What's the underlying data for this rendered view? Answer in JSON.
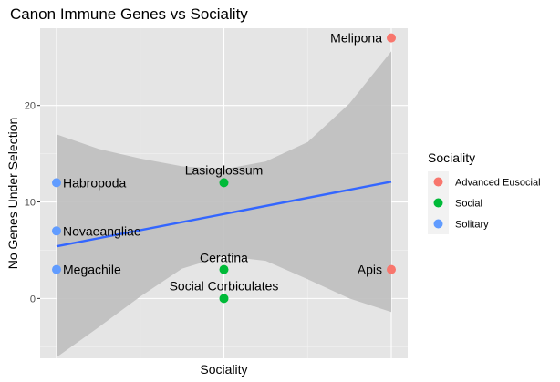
{
  "chart_data": {
    "type": "scatter",
    "title": "Canon Immune Genes vs Sociality",
    "xlabel": "Sociality",
    "ylabel": "No Genes Under Selection",
    "x_categories": [
      "Solitary",
      "Social",
      "Advanced Eusocial"
    ],
    "ylim": [
      -6.2,
      28
    ],
    "yticks": [
      0,
      10,
      20
    ],
    "grid": true,
    "legend": {
      "title": "Sociality",
      "placement": "right",
      "entries": [
        {
          "name": "Advanced Eusocial",
          "color": "#F8766D"
        },
        {
          "name": "Social",
          "color": "#00BA38"
        },
        {
          "name": "Solitary",
          "color": "#619CFF"
        }
      ]
    },
    "points": [
      {
        "label": "Melipona",
        "group": "Advanced Eusocial",
        "x": "Advanced Eusocial",
        "y": 27
      },
      {
        "label": "Apis",
        "group": "Advanced Eusocial",
        "x": "Advanced Eusocial",
        "y": 3
      },
      {
        "label": "Lasioglossum",
        "group": "Social",
        "x": "Social",
        "y": 12
      },
      {
        "label": "Ceratina",
        "group": "Social",
        "x": "Social",
        "y": 3
      },
      {
        "label": "Social Corbiculates",
        "group": "Social",
        "x": "Social",
        "y": 0
      },
      {
        "label": "Habropoda",
        "group": "Solitary",
        "x": "Solitary",
        "y": 12
      },
      {
        "label": "Novaeangliae",
        "group": "Solitary",
        "x": "Solitary",
        "y": 7
      },
      {
        "label": "Megachile",
        "group": "Solitary",
        "x": "Solitary",
        "y": 3
      }
    ],
    "trend_line": {
      "color": "#3366FF",
      "x": [
        "Solitary",
        "Advanced Eusocial"
      ],
      "y": [
        5.4,
        12.1
      ]
    },
    "confidence_band": {
      "x": [
        0,
        0.25,
        0.5,
        0.75,
        1,
        1.25,
        1.5,
        1.75,
        2
      ],
      "upper": [
        17,
        15.5,
        14.5,
        13.7,
        13.4,
        14.2,
        16.2,
        20.2,
        25.6
      ],
      "lower": [
        -6.1,
        -3.0,
        0.2,
        3.1,
        4.4,
        3.9,
        2.0,
        0.0,
        -1.4
      ]
    },
    "colors": {
      "panel_background": "#E5E5E5",
      "grid_major": "#FFFFFF",
      "band": "#BEBEBE"
    }
  }
}
